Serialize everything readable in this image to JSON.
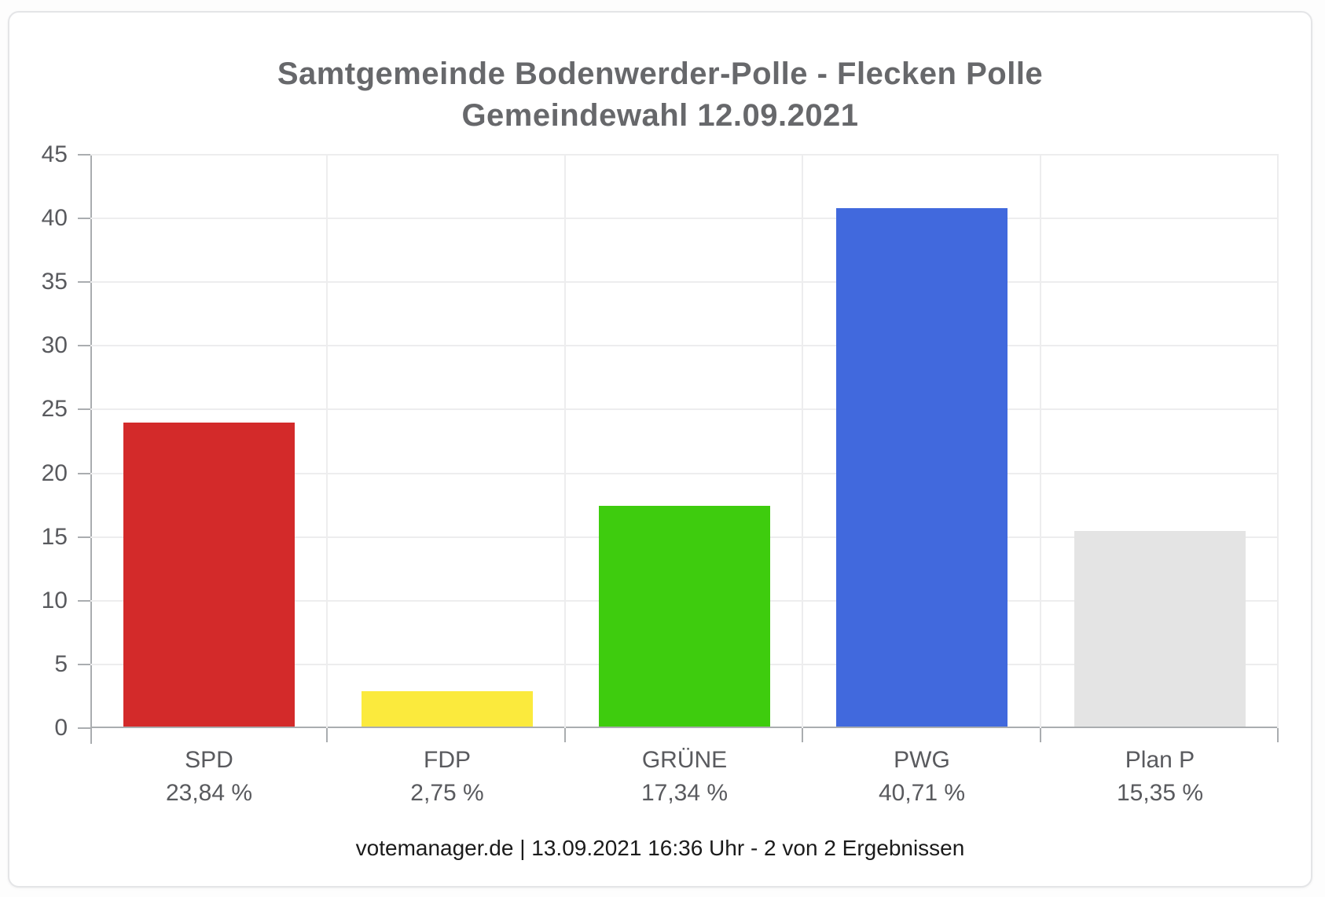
{
  "title": {
    "line1": "Samtgemeinde Bodenwerder-Polle - Flecken Polle",
    "line2": "Gemeindewahl 12.09.2021"
  },
  "footer": {
    "text": "votemanager.de | 13.09.2021 16:36 Uhr - 2 von 2 Ergebnissen"
  },
  "colors": {
    "title_text": "#67686b",
    "axis_text": "#595a5e",
    "axis_line": "#aaadb0",
    "gridline": "#ededee",
    "card_border": "#e4e5e7",
    "footer_text": "#1b1b1b"
  },
  "chart_data": {
    "type": "bar",
    "title": "Samtgemeinde Bodenwerder-Polle - Flecken Polle Gemeindewahl 12.09.2021",
    "categories": [
      "SPD",
      "FDP",
      "GRÜNE",
      "PWG",
      "Plan P"
    ],
    "values": [
      23.84,
      2.75,
      17.34,
      40.71,
      15.35
    ],
    "value_labels": [
      "23,84 %",
      "2,75 %",
      "17,34 %",
      "40,71 %",
      "15,35 %"
    ],
    "bar_colors": [
      "#d32a2a",
      "#fbea3d",
      "#3ecc0e",
      "#4169dd",
      "#e4e4e4"
    ],
    "xlabel": "",
    "ylabel": "",
    "ylim": [
      0,
      45
    ],
    "yticks": [
      0,
      5,
      10,
      15,
      20,
      25,
      30,
      35,
      40,
      45
    ],
    "grid": true,
    "legend": "none"
  }
}
